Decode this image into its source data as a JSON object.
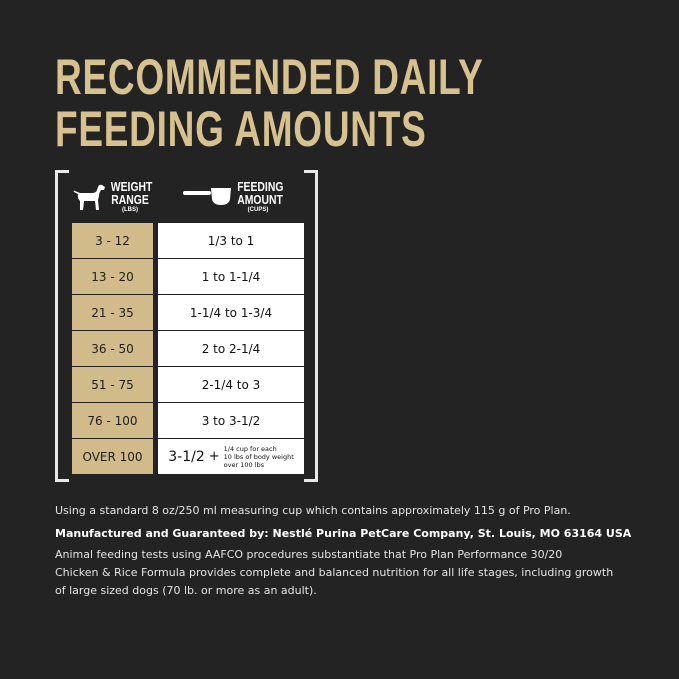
{
  "title": {
    "line1": "RECOMMENDED DAILY",
    "line2": "FEEDING AMOUNTS"
  },
  "colors": {
    "background": "#232323",
    "gold": "#d2bb8a",
    "title": "#d6c18f"
  },
  "table": {
    "weight_header": {
      "line1": "WEIGHT",
      "line2": "RANGE",
      "unit": "(LBS)",
      "icon": "dog-icon"
    },
    "feeding_header": {
      "line1": "FEEDING",
      "line2": "AMOUNT",
      "unit": "(CUPS)",
      "icon": "measuring-cup-icon"
    },
    "rows": [
      {
        "weight": "3 - 12",
        "amount": "1/3 to 1"
      },
      {
        "weight": "13 - 20",
        "amount": "1 to 1-1/4"
      },
      {
        "weight": "21 - 35",
        "amount": "1-1/4 to 1-3/4"
      },
      {
        "weight": "36 - 50",
        "amount": "2 to 2-1/4"
      },
      {
        "weight": "51 - 75",
        "amount": "2-1/4 to 3"
      },
      {
        "weight": "76 - 100",
        "amount": "3 to 3-1/2"
      }
    ],
    "last_row": {
      "weight": "OVER 100",
      "amount": "3-1/2",
      "plus": "+",
      "note1": "1/4 cup for each",
      "note2": "10 lbs of body weight",
      "note3": "over 100 lbs"
    }
  },
  "footer": {
    "cup_note": "Using a standard 8 oz/250 ml measuring cup which contains approximately 115 g of Pro Plan.",
    "manufacturer": "Manufactured and Guaranteed by: Nestlé Purina PetCare Company, St. Louis, MO 63164 USA",
    "aafco1": "Animal feeding tests using AAFCO procedures substantiate that Pro Plan Performance 30/20",
    "aafco2": "Chicken & Rice Formula provides complete and balanced nutrition for all life stages, including growth",
    "aafco3": "of large sized dogs (70 lb. or more as an adult)."
  }
}
